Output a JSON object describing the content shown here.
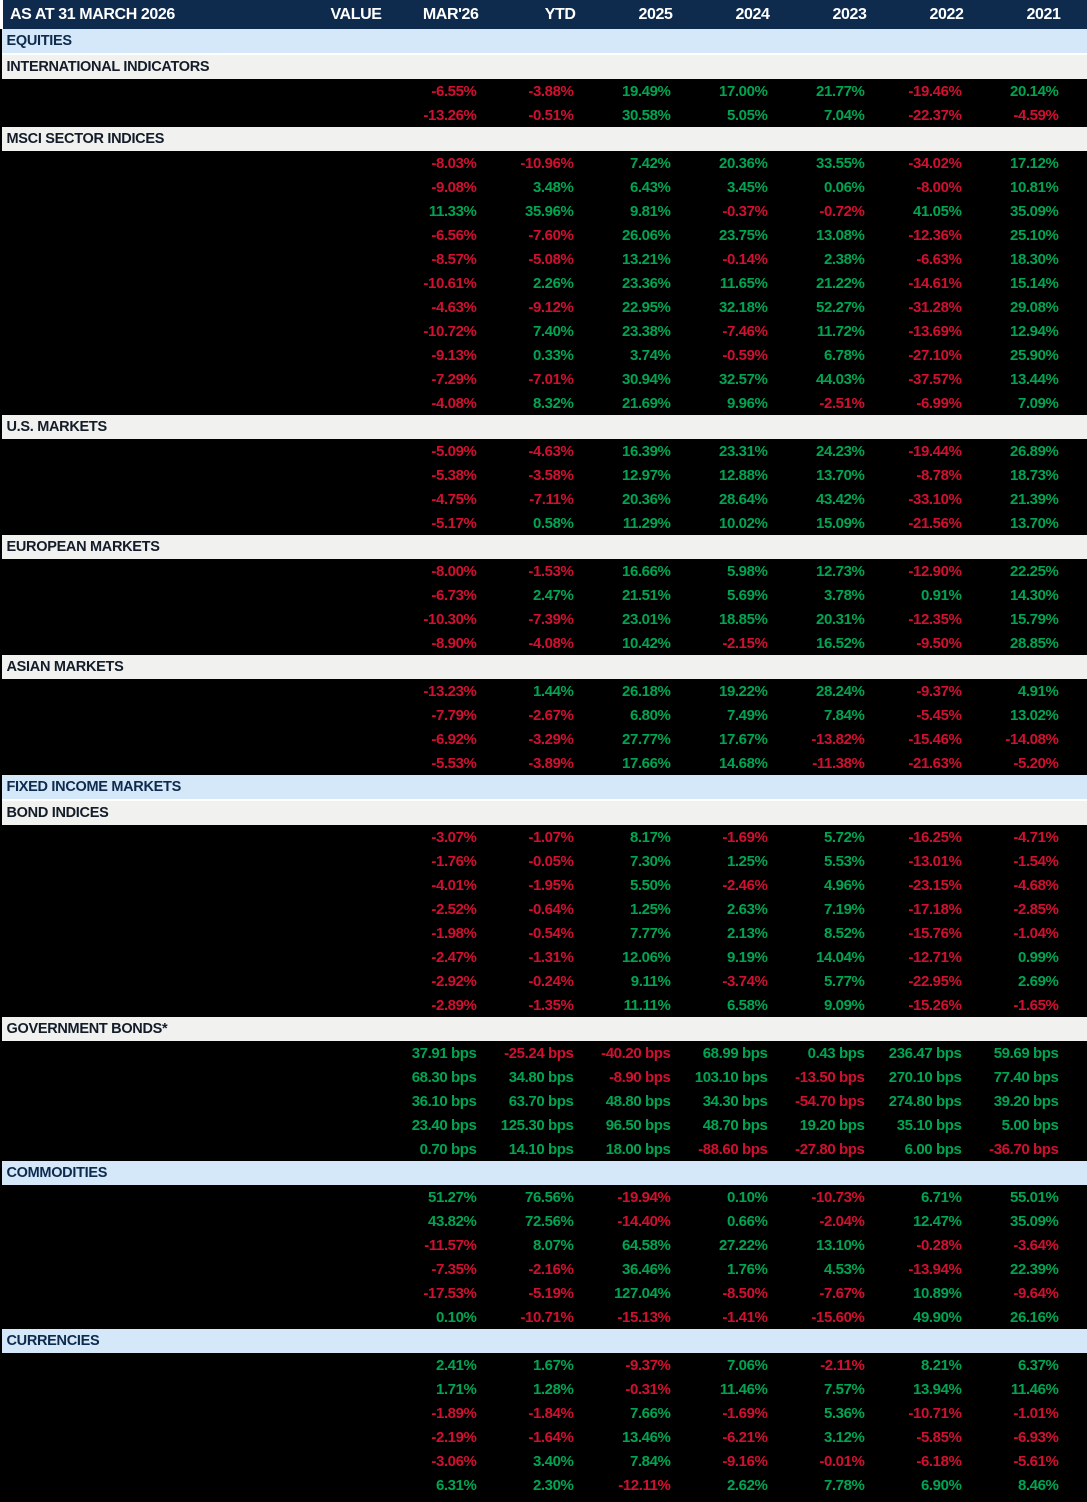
{
  "colors": {
    "header_bg": "#0e2a4d",
    "section_blue_bg": "#d5e8f9",
    "section_gray_bg": "#f1f1f0",
    "positive": "#00a551",
    "negative": "#d11030",
    "table_bg": "#000000"
  },
  "chart_data": {
    "type": "table",
    "title": "AS AT 31 MARCH 2026",
    "columns": [
      "VALUE",
      "MAR'26",
      "YTD",
      "2025",
      "2024",
      "2023",
      "2022",
      "2021"
    ],
    "notes": "Row label column and VALUE column are blacked out / not visible in the screenshot. Negative values shown in red, positive in green.",
    "sections": [
      {
        "label": "EQUITIES",
        "style": "blue",
        "rows": []
      },
      {
        "label": "INTERNATIONAL INDICATORS",
        "style": "gray",
        "rows": [
          [
            "-6.55%",
            "-3.88%",
            "19.49%",
            "17.00%",
            "21.77%",
            "-19.46%",
            "20.14%"
          ],
          [
            "-13.26%",
            "-0.51%",
            "30.58%",
            "5.05%",
            "7.04%",
            "-22.37%",
            "-4.59%"
          ]
        ]
      },
      {
        "label": "MSCI SECTOR INDICES",
        "style": "gray",
        "rows": [
          [
            "-8.03%",
            "-10.96%",
            "7.42%",
            "20.36%",
            "33.55%",
            "-34.02%",
            "17.12%"
          ],
          [
            "-9.08%",
            "3.48%",
            "6.43%",
            "3.45%",
            "0.06%",
            "-8.00%",
            "10.81%"
          ],
          [
            "11.33%",
            "35.96%",
            "9.81%",
            "-0.37%",
            "-0.72%",
            "41.05%",
            "35.09%"
          ],
          [
            "-6.56%",
            "-7.60%",
            "26.06%",
            "23.75%",
            "13.08%",
            "-12.36%",
            "25.10%"
          ],
          [
            "-8.57%",
            "-5.08%",
            "13.21%",
            "-0.14%",
            "2.38%",
            "-6.63%",
            "18.30%"
          ],
          [
            "-10.61%",
            "2.26%",
            "23.36%",
            "11.65%",
            "21.22%",
            "-14.61%",
            "15.14%"
          ],
          [
            "-4.63%",
            "-9.12%",
            "22.95%",
            "32.18%",
            "52.27%",
            "-31.28%",
            "29.08%"
          ],
          [
            "-10.72%",
            "7.40%",
            "23.38%",
            "-7.46%",
            "11.72%",
            "-13.69%",
            "12.94%"
          ],
          [
            "-9.13%",
            "0.33%",
            "3.74%",
            "-0.59%",
            "6.78%",
            "-27.10%",
            "25.90%"
          ],
          [
            "-7.29%",
            "-7.01%",
            "30.94%",
            "32.57%",
            "44.03%",
            "-37.57%",
            "13.44%"
          ],
          [
            "-4.08%",
            "8.32%",
            "21.69%",
            "9.96%",
            "-2.51%",
            "-6.99%",
            "7.09%"
          ]
        ]
      },
      {
        "label": "U.S.  MARKETS",
        "style": "gray",
        "rows": [
          [
            "-5.09%",
            "-4.63%",
            "16.39%",
            "23.31%",
            "24.23%",
            "-19.44%",
            "26.89%"
          ],
          [
            "-5.38%",
            "-3.58%",
            "12.97%",
            "12.88%",
            "13.70%",
            "-8.78%",
            "18.73%"
          ],
          [
            "-4.75%",
            "-7.11%",
            "20.36%",
            "28.64%",
            "43.42%",
            "-33.10%",
            "21.39%"
          ],
          [
            "-5.17%",
            "0.58%",
            "11.29%",
            "10.02%",
            "15.09%",
            "-21.56%",
            "13.70%"
          ]
        ]
      },
      {
        "label": "EUROPEAN MARKETS",
        "style": "gray",
        "rows": [
          [
            "-8.00%",
            "-1.53%",
            "16.66%",
            "5.98%",
            "12.73%",
            "-12.90%",
            "22.25%"
          ],
          [
            "-6.73%",
            "2.47%",
            "21.51%",
            "5.69%",
            "3.78%",
            "0.91%",
            "14.30%"
          ],
          [
            "-10.30%",
            "-7.39%",
            "23.01%",
            "18.85%",
            "20.31%",
            "-12.35%",
            "15.79%"
          ],
          [
            "-8.90%",
            "-4.08%",
            "10.42%",
            "-2.15%",
            "16.52%",
            "-9.50%",
            "28.85%"
          ]
        ]
      },
      {
        "label": "ASIAN MARKETS",
        "style": "gray",
        "rows": [
          [
            "-13.23%",
            "1.44%",
            "26.18%",
            "19.22%",
            "28.24%",
            "-9.37%",
            "4.91%"
          ],
          [
            "-7.79%",
            "-2.67%",
            "6.80%",
            "7.49%",
            "7.84%",
            "-5.45%",
            "13.02%"
          ],
          [
            "-6.92%",
            "-3.29%",
            "27.77%",
            "17.67%",
            "-13.82%",
            "-15.46%",
            "-14.08%"
          ],
          [
            "-5.53%",
            "-3.89%",
            "17.66%",
            "14.68%",
            "-11.38%",
            "-21.63%",
            "-5.20%"
          ]
        ]
      },
      {
        "label": "FIXED INCOME MARKETS",
        "style": "blue",
        "rows": []
      },
      {
        "label": "BOND INDICES",
        "style": "gray",
        "rows": [
          [
            "-3.07%",
            "-1.07%",
            "8.17%",
            "-1.69%",
            "5.72%",
            "-16.25%",
            "-4.71%"
          ],
          [
            "-1.76%",
            "-0.05%",
            "7.30%",
            "1.25%",
            "5.53%",
            "-13.01%",
            "-1.54%"
          ],
          [
            "-4.01%",
            "-1.95%",
            "5.50%",
            "-2.46%",
            "4.96%",
            "-23.15%",
            "-4.68%"
          ],
          [
            "-2.52%",
            "-0.64%",
            "1.25%",
            "2.63%",
            "7.19%",
            "-17.18%",
            "-2.85%"
          ],
          [
            "-1.98%",
            "-0.54%",
            "7.77%",
            "2.13%",
            "8.52%",
            "-15.76%",
            "-1.04%"
          ],
          [
            "-2.47%",
            "-1.31%",
            "12.06%",
            "9.19%",
            "14.04%",
            "-12.71%",
            "0.99%"
          ],
          [
            "-2.92%",
            "-0.24%",
            "9.11%",
            "-3.74%",
            "5.77%",
            "-22.95%",
            "2.69%"
          ],
          [
            "-2.89%",
            "-1.35%",
            "11.11%",
            "6.58%",
            "9.09%",
            "-15.26%",
            "-1.65%"
          ]
        ]
      },
      {
        "label": "GOVERNMENT BONDS*",
        "style": "gray",
        "rows": [
          [
            "37.91 bps",
            "-25.24 bps",
            "-40.20 bps",
            "68.99 bps",
            "0.43 bps",
            "236.47 bps",
            "59.69 bps"
          ],
          [
            "68.30 bps",
            "34.80 bps",
            "-8.90 bps",
            "103.10 bps",
            "-13.50 bps",
            "270.10 bps",
            "77.40 bps"
          ],
          [
            "36.10 bps",
            "63.70 bps",
            "48.80 bps",
            "34.30 bps",
            "-54.70 bps",
            "274.80 bps",
            "39.20 bps"
          ],
          [
            "23.40 bps",
            "125.30 bps",
            "96.50 bps",
            "48.70 bps",
            "19.20 bps",
            "35.10 bps",
            "5.00 bps"
          ],
          [
            "0.70 bps",
            "14.10 bps",
            "18.00 bps",
            "-88.60 bps",
            "-27.80 bps",
            "6.00 bps",
            "-36.70 bps"
          ]
        ]
      },
      {
        "label": "COMMODITIES",
        "style": "blue",
        "rows": [
          [
            "51.27%",
            "76.56%",
            "-19.94%",
            "0.10%",
            "-10.73%",
            "6.71%",
            "55.01%"
          ],
          [
            "43.82%",
            "72.56%",
            "-14.40%",
            "0.66%",
            "-2.04%",
            "12.47%",
            "35.09%"
          ],
          [
            "-11.57%",
            "8.07%",
            "64.58%",
            "27.22%",
            "13.10%",
            "-0.28%",
            "-3.64%"
          ],
          [
            "-7.35%",
            "-2.16%",
            "36.46%",
            "1.76%",
            "4.53%",
            "-13.94%",
            "22.39%"
          ],
          [
            "-17.53%",
            "-5.19%",
            "127.04%",
            "-8.50%",
            "-7.67%",
            "10.89%",
            "-9.64%"
          ],
          [
            "0.10%",
            "-10.71%",
            "-15.13%",
            "-1.41%",
            "-15.60%",
            "49.90%",
            "26.16%"
          ]
        ]
      },
      {
        "label": "CURRENCIES",
        "style": "blue",
        "rows": [
          [
            "2.41%",
            "1.67%",
            "-9.37%",
            "7.06%",
            "-2.11%",
            "8.21%",
            "6.37%"
          ],
          [
            "1.71%",
            "1.28%",
            "-0.31%",
            "11.46%",
            "7.57%",
            "13.94%",
            "11.46%"
          ],
          [
            "-1.89%",
            "-1.84%",
            "7.66%",
            "-1.69%",
            "5.36%",
            "-10.71%",
            "-1.01%"
          ],
          [
            "-2.19%",
            "-1.64%",
            "13.46%",
            "-6.21%",
            "3.12%",
            "-5.85%",
            "-6.93%"
          ],
          [
            "-3.06%",
            "3.40%",
            "7.84%",
            "-9.16%",
            "-0.01%",
            "-6.18%",
            "-5.61%"
          ],
          [
            "6.31%",
            "2.30%",
            "-12.11%",
            "2.62%",
            "7.78%",
            "6.90%",
            "8.46%"
          ]
        ]
      }
    ]
  }
}
